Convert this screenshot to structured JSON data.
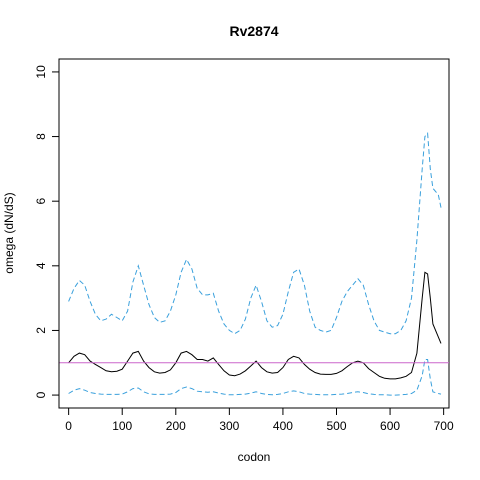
{
  "chart_data": {
    "type": "line",
    "title": "Rv2874",
    "xlabel": "codon",
    "ylabel": "omega (dN/dS)",
    "xlim": [
      -18,
      710
    ],
    "ylim": [
      -0.4,
      10.4
    ],
    "xticks": [
      0,
      100,
      200,
      300,
      400,
      500,
      600,
      700
    ],
    "yticks": [
      0,
      2,
      4,
      6,
      8,
      10
    ],
    "grid": false,
    "reference_line": {
      "y": 1,
      "color": "#cc66cc"
    },
    "x": [
      0,
      10,
      20,
      30,
      40,
      50,
      60,
      70,
      80,
      90,
      100,
      110,
      120,
      130,
      140,
      150,
      160,
      170,
      180,
      190,
      200,
      210,
      220,
      230,
      240,
      250,
      260,
      270,
      280,
      290,
      300,
      310,
      320,
      330,
      340,
      350,
      360,
      370,
      380,
      390,
      400,
      410,
      420,
      430,
      440,
      450,
      460,
      470,
      480,
      490,
      500,
      510,
      520,
      530,
      540,
      550,
      560,
      570,
      580,
      590,
      600,
      610,
      620,
      630,
      640,
      650,
      660,
      665,
      670,
      675,
      680,
      690,
      695
    ],
    "series": [
      {
        "style": "solid",
        "color": "#000000",
        "values": [
          1.0,
          1.2,
          1.3,
          1.25,
          1.05,
          0.95,
          0.85,
          0.75,
          0.72,
          0.74,
          0.8,
          1.05,
          1.3,
          1.35,
          1.05,
          0.85,
          0.72,
          0.68,
          0.7,
          0.78,
          1.0,
          1.3,
          1.35,
          1.25,
          1.1,
          1.1,
          1.05,
          1.15,
          0.95,
          0.75,
          0.62,
          0.6,
          0.65,
          0.75,
          0.9,
          1.05,
          0.85,
          0.72,
          0.68,
          0.7,
          0.85,
          1.1,
          1.2,
          1.15,
          0.95,
          0.8,
          0.7,
          0.65,
          0.64,
          0.64,
          0.67,
          0.75,
          0.88,
          1.0,
          1.05,
          1.0,
          0.82,
          0.7,
          0.58,
          0.52,
          0.5,
          0.5,
          0.53,
          0.58,
          0.7,
          1.3,
          3.0,
          3.8,
          3.75,
          3.0,
          2.2,
          1.8,
          1.6
        ]
      },
      {
        "style": "dashed",
        "color": "#3aa0dc",
        "values": [
          2.9,
          3.3,
          3.55,
          3.4,
          2.9,
          2.5,
          2.3,
          2.35,
          2.5,
          2.4,
          2.3,
          2.6,
          3.5,
          4.0,
          3.4,
          2.8,
          2.4,
          2.25,
          2.3,
          2.6,
          3.1,
          3.8,
          4.2,
          3.9,
          3.3,
          3.1,
          3.1,
          3.15,
          2.6,
          2.2,
          2.0,
          1.9,
          2.0,
          2.35,
          3.0,
          3.4,
          2.9,
          2.3,
          2.1,
          2.15,
          2.5,
          3.2,
          3.8,
          3.9,
          3.4,
          2.6,
          2.1,
          2.0,
          1.95,
          2.0,
          2.4,
          2.9,
          3.2,
          3.4,
          3.6,
          3.4,
          2.8,
          2.3,
          2.0,
          1.95,
          1.9,
          1.9,
          2.0,
          2.3,
          3.0,
          4.8,
          7.0,
          8.0,
          8.1,
          7.0,
          6.4,
          6.2,
          5.8
        ]
      },
      {
        "style": "dashed",
        "color": "#3aa0dc",
        "values": [
          0.05,
          0.15,
          0.2,
          0.15,
          0.08,
          0.05,
          0.03,
          0.02,
          0.02,
          0.02,
          0.03,
          0.1,
          0.2,
          0.22,
          0.1,
          0.04,
          0.02,
          0.02,
          0.02,
          0.03,
          0.08,
          0.2,
          0.25,
          0.2,
          0.12,
          0.1,
          0.09,
          0.1,
          0.06,
          0.03,
          0.01,
          0.01,
          0.02,
          0.03,
          0.06,
          0.1,
          0.05,
          0.02,
          0.01,
          0.02,
          0.05,
          0.1,
          0.13,
          0.1,
          0.05,
          0.03,
          0.02,
          0.01,
          0.01,
          0.01,
          0.02,
          0.03,
          0.05,
          0.08,
          0.1,
          0.08,
          0.04,
          0.02,
          0.01,
          0.01,
          0.0,
          0.0,
          0.01,
          0.02,
          0.05,
          0.15,
          0.6,
          1.1,
          1.1,
          0.5,
          0.1,
          0.05,
          0.03
        ]
      }
    ]
  }
}
